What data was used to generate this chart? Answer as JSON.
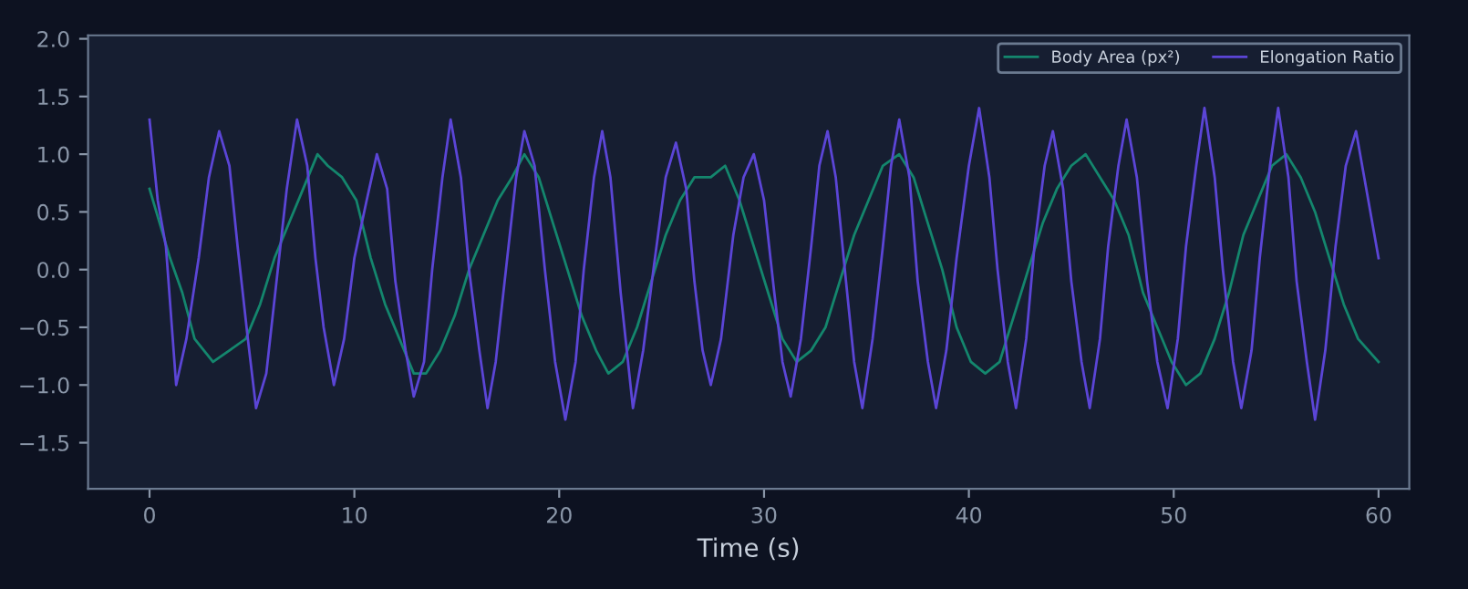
{
  "chart_data": {
    "type": "line",
    "xlabel": "Time (s)",
    "xlim": [
      -3,
      61.5
    ],
    "ylim": [
      -1.9,
      2.03
    ],
    "xticks": [
      0,
      10,
      20,
      30,
      40,
      50,
      60
    ],
    "yticks": [
      {
        "value": -1.5,
        "label": "−1.5"
      },
      {
        "value": -1.0,
        "label": "−1.0"
      },
      {
        "value": -0.5,
        "label": "−0.5"
      },
      {
        "value": 0,
        "label": "0.0"
      },
      0.5,
      {
        "value": 1,
        "label": "1.0"
      },
      1.5,
      {
        "value": 2,
        "label": "2.0"
      }
    ],
    "grid": false,
    "legend": "top right",
    "series": [
      {
        "name": "Body Area (px²)",
        "color": "#14866d",
        "x": [
          0,
          0.5,
          1.0,
          1.6,
          2.2,
          3.1,
          3.9,
          4.7,
          5.4,
          6.1,
          6.8,
          7.5,
          8.2,
          8.7,
          9.4,
          10.1,
          10.8,
          11.5,
          12.2,
          12.9,
          13.5,
          14.2,
          14.9,
          15.6,
          16.3,
          17.0,
          17.7,
          18.3,
          19.0,
          19.7,
          20.4,
          21.1,
          21.8,
          22.4,
          23.1,
          23.8,
          24.5,
          25.2,
          25.9,
          26.6,
          27.4,
          28.1,
          28.8,
          29.5,
          30.2,
          30.9,
          31.6,
          32.3,
          33.0,
          33.7,
          34.4,
          35.1,
          35.8,
          36.6,
          37.3,
          38.0,
          38.7,
          39.4,
          40.1,
          40.8,
          41.5,
          42.2,
          42.9,
          43.6,
          44.3,
          45.0,
          45.7,
          46.4,
          47.1,
          47.8,
          48.5,
          49.2,
          49.9,
          50.6,
          51.3,
          52.0,
          52.7,
          53.4,
          54.1,
          54.8,
          55.5,
          56.2,
          56.9,
          57.6,
          58.3,
          59.0,
          60.0
        ],
        "values": [
          0.7,
          0.4,
          0.1,
          -0.2,
          -0.6,
          -0.8,
          -0.7,
          -0.6,
          -0.3,
          0.1,
          0.4,
          0.7,
          1.0,
          0.9,
          0.8,
          0.6,
          0.1,
          -0.3,
          -0.6,
          -0.9,
          -0.9,
          -0.7,
          -0.4,
          0.0,
          0.3,
          0.6,
          0.8,
          1.0,
          0.8,
          0.4,
          0.0,
          -0.4,
          -0.7,
          -0.9,
          -0.8,
          -0.5,
          -0.1,
          0.3,
          0.6,
          0.8,
          0.8,
          0.9,
          0.6,
          0.2,
          -0.2,
          -0.6,
          -0.8,
          -0.7,
          -0.5,
          -0.1,
          0.3,
          0.6,
          0.9,
          1.0,
          0.8,
          0.4,
          0.0,
          -0.5,
          -0.8,
          -0.9,
          -0.8,
          -0.4,
          0.0,
          0.4,
          0.7,
          0.9,
          1.0,
          0.8,
          0.6,
          0.3,
          -0.2,
          -0.5,
          -0.8,
          -1.0,
          -0.9,
          -0.6,
          -0.2,
          0.3,
          0.6,
          0.9,
          1.0,
          0.8,
          0.5,
          0.1,
          -0.3,
          -0.6,
          -0.8
        ]
      },
      {
        "name": "Elongation Ratio",
        "color": "#5b45d6",
        "x": [
          0,
          0.4,
          0.8,
          1.3,
          1.8,
          2.4,
          2.9,
          3.4,
          3.9,
          4.3,
          4.8,
          5.2,
          5.7,
          6.2,
          6.7,
          7.2,
          7.7,
          8.1,
          8.5,
          9.0,
          9.5,
          10.0,
          10.6,
          11.1,
          11.6,
          12.0,
          12.5,
          12.9,
          13.4,
          13.8,
          14.3,
          14.7,
          15.2,
          15.6,
          16.1,
          16.5,
          16.9,
          17.4,
          17.9,
          18.3,
          18.8,
          19.3,
          19.8,
          20.3,
          20.8,
          21.2,
          21.7,
          22.1,
          22.5,
          23.0,
          23.6,
          24.1,
          24.6,
          25.2,
          25.7,
          26.2,
          26.6,
          27.0,
          27.4,
          27.9,
          28.5,
          29.0,
          29.5,
          30.0,
          30.5,
          30.9,
          31.3,
          31.8,
          32.3,
          32.7,
          33.1,
          33.5,
          34.0,
          34.4,
          34.8,
          35.3,
          35.8,
          36.2,
          36.6,
          37.1,
          37.5,
          38.0,
          38.4,
          38.9,
          39.4,
          40.0,
          40.5,
          41.0,
          41.4,
          41.9,
          42.3,
          42.8,
          43.2,
          43.7,
          44.1,
          44.6,
          45.0,
          45.5,
          45.9,
          46.4,
          46.8,
          47.3,
          47.7,
          48.2,
          48.7,
          49.2,
          49.7,
          50.2,
          50.6,
          51.1,
          51.5,
          52.0,
          52.4,
          52.9,
          53.3,
          53.8,
          54.2,
          54.7,
          55.1,
          55.6,
          56.0,
          56.5,
          56.9,
          57.4,
          57.9,
          58.4,
          58.9,
          59.4,
          60.0
        ],
        "values": [
          1.3,
          0.6,
          0.2,
          -1.0,
          -0.6,
          0.1,
          0.8,
          1.2,
          0.9,
          0.2,
          -0.6,
          -1.2,
          -0.9,
          -0.1,
          0.7,
          1.3,
          0.9,
          0.1,
          -0.5,
          -1.0,
          -0.6,
          0.1,
          0.6,
          1.0,
          0.7,
          -0.1,
          -0.7,
          -1.1,
          -0.8,
          0.0,
          0.8,
          1.3,
          0.8,
          0.0,
          -0.7,
          -1.2,
          -0.8,
          0.0,
          0.8,
          1.2,
          0.9,
          0.0,
          -0.8,
          -1.3,
          -0.8,
          0.0,
          0.8,
          1.2,
          0.8,
          -0.2,
          -1.2,
          -0.7,
          0.0,
          0.8,
          1.1,
          0.7,
          -0.1,
          -0.7,
          -1.0,
          -0.6,
          0.3,
          0.8,
          1.0,
          0.6,
          -0.2,
          -0.8,
          -1.1,
          -0.6,
          0.2,
          0.9,
          1.2,
          0.8,
          -0.1,
          -0.8,
          -1.2,
          -0.6,
          0.2,
          0.9,
          1.3,
          0.8,
          -0.1,
          -0.8,
          -1.2,
          -0.7,
          0.1,
          0.9,
          1.4,
          0.8,
          0.0,
          -0.8,
          -1.2,
          -0.6,
          0.2,
          0.9,
          1.2,
          0.7,
          -0.1,
          -0.8,
          -1.2,
          -0.6,
          0.2,
          0.9,
          1.3,
          0.8,
          -0.1,
          -0.8,
          -1.2,
          -0.6,
          0.2,
          0.9,
          1.4,
          0.8,
          0.0,
          -0.8,
          -1.2,
          -0.7,
          0.1,
          0.9,
          1.4,
          0.8,
          -0.1,
          -0.8,
          -1.3,
          -0.7,
          0.2,
          0.9,
          1.2,
          0.7,
          0.1
        ]
      }
    ]
  }
}
